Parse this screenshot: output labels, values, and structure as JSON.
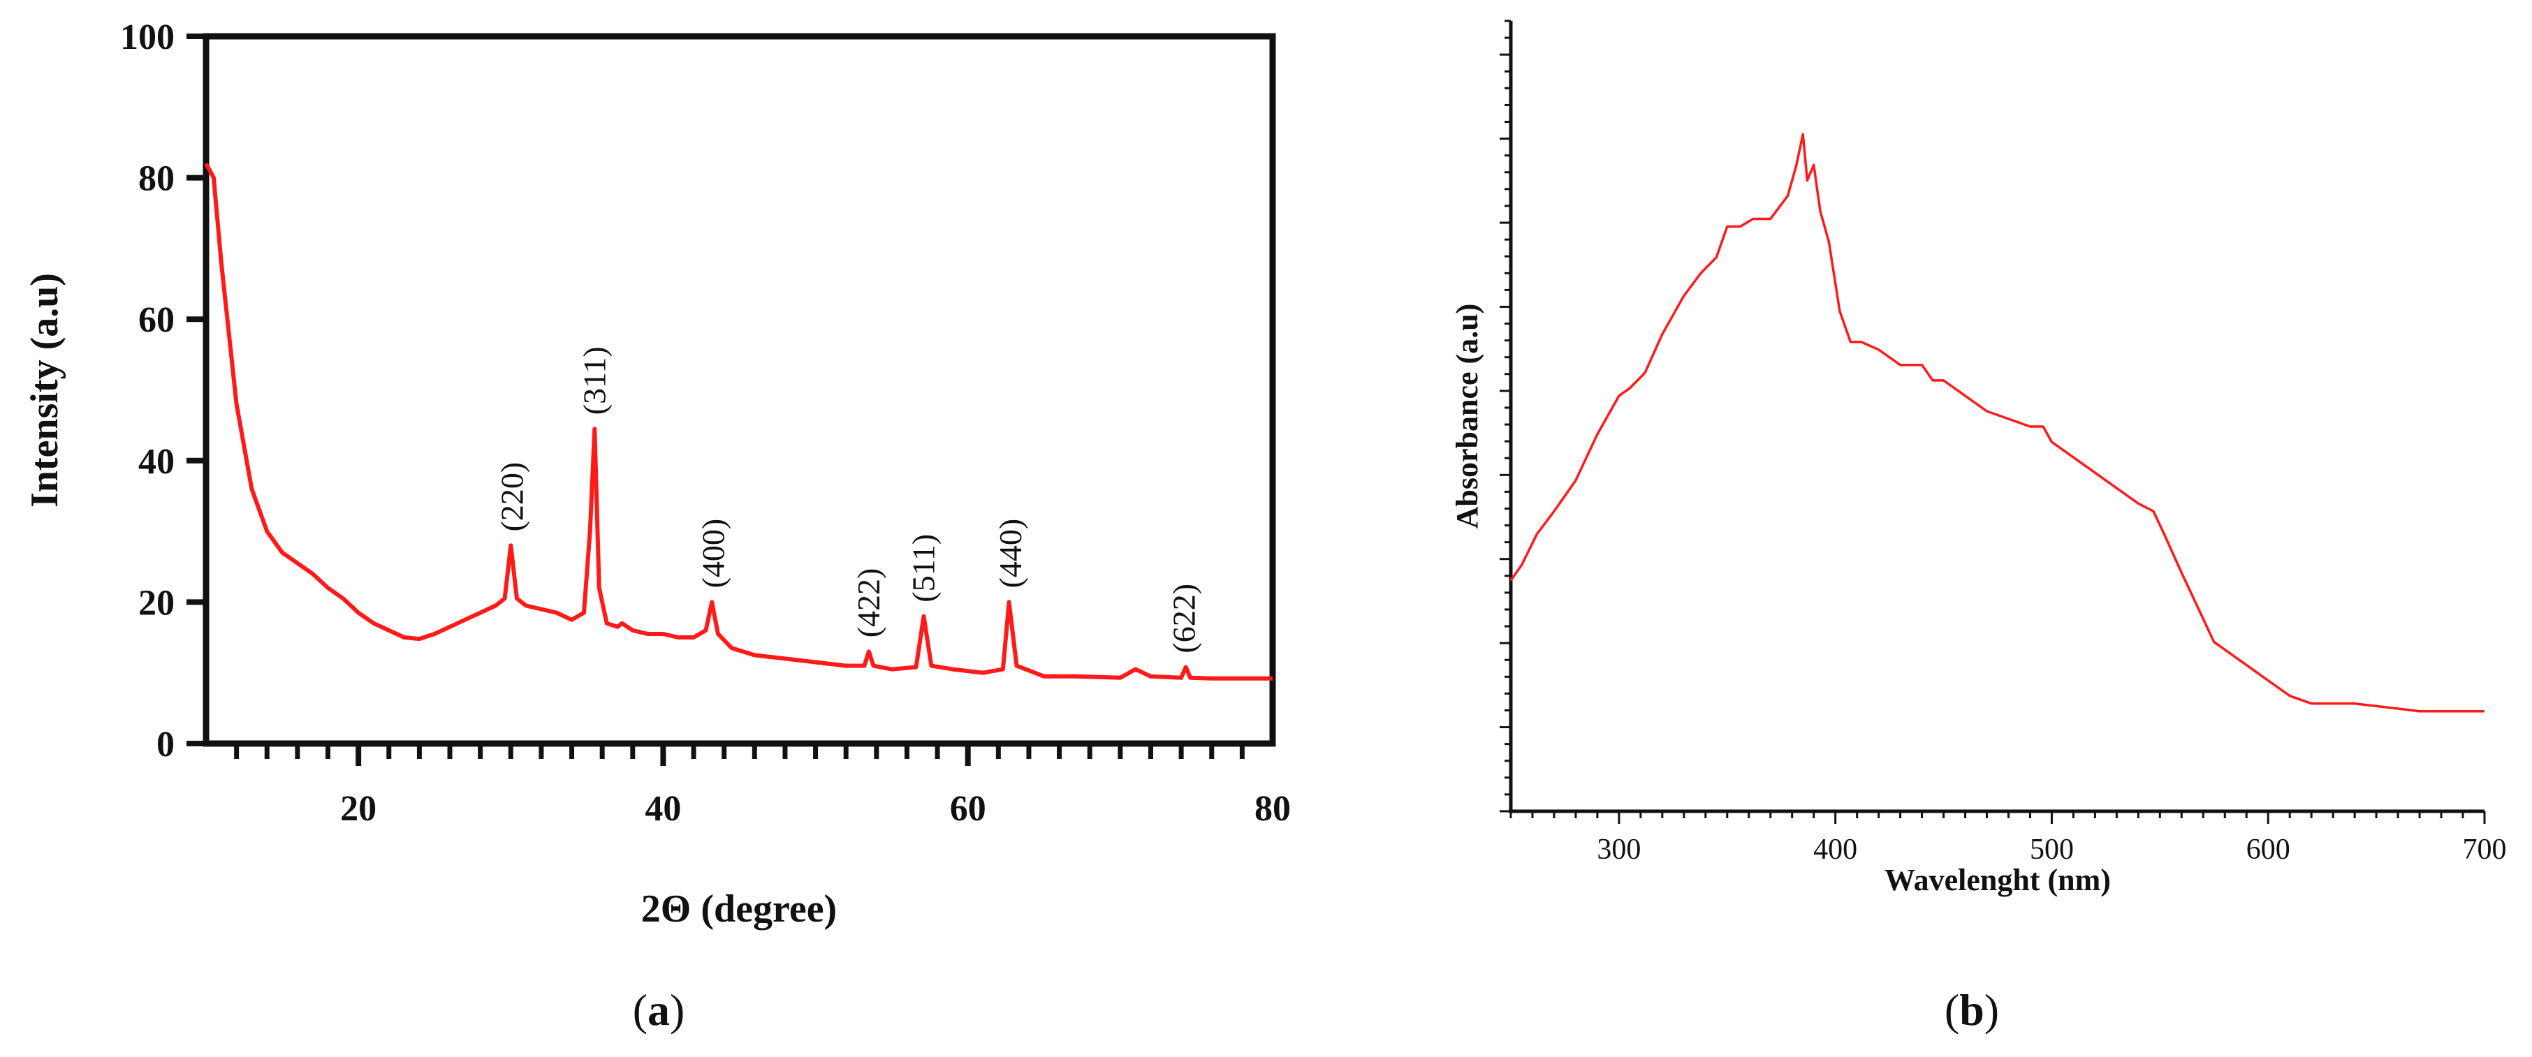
{
  "chart_data": [
    {
      "panel": "(a)",
      "type": "line",
      "xlabel": "2Θ (degree)",
      "ylabel": "Intensity (a.u)",
      "xlim": [
        10,
        80
      ],
      "ylim": [
        0,
        100
      ],
      "xticks": [
        20,
        40,
        60,
        80
      ],
      "yticks": [
        0,
        20,
        40,
        60,
        80,
        100
      ],
      "line_color": "#ff1a1a",
      "series": [
        {
          "x": [
            10,
            10.5,
            11,
            12,
            13,
            14,
            15,
            16,
            17,
            18,
            19,
            20,
            21,
            22,
            23,
            24,
            25,
            26,
            27,
            28,
            29,
            29.6,
            30,
            30.4,
            31,
            32,
            33,
            34,
            34.8,
            35.2,
            35.5,
            35.8,
            36.3,
            37,
            37.3,
            38,
            39,
            40,
            41,
            42,
            42.8,
            43.2,
            43.6,
            44.5,
            46,
            48,
            50,
            52,
            53.2,
            53.5,
            53.8,
            55,
            56.6,
            57.1,
            57.6,
            59,
            61,
            62.3,
            62.7,
            63.2,
            65,
            67,
            70,
            71,
            72,
            74,
            74.3,
            74.6,
            76,
            78,
            80
          ],
          "y": [
            82,
            80,
            68,
            48,
            36,
            30,
            27,
            25.5,
            24,
            22,
            20.5,
            18.5,
            17,
            16,
            15,
            14.8,
            15.5,
            16.5,
            17.5,
            18.5,
            19.5,
            20.5,
            28,
            20.5,
            19.5,
            19,
            18.5,
            17.5,
            18.5,
            30,
            44.5,
            22,
            17,
            16.5,
            17,
            16,
            15.5,
            15.5,
            15,
            15,
            16,
            20,
            15.5,
            13.5,
            12.5,
            12,
            11.5,
            11,
            11,
            13,
            11,
            10.5,
            10.8,
            18,
            11,
            10.5,
            10,
            10.5,
            20,
            11,
            9.5,
            9.5,
            9.3,
            10.5,
            9.5,
            9.3,
            10.8,
            9.3,
            9.2,
            9.2,
            9.2
          ]
        }
      ],
      "annotations": [
        {
          "text": "(220)",
          "x": 30.1,
          "y": 28
        },
        {
          "text": "(311)",
          "x": 35.5,
          "y": 44.5
        },
        {
          "text": "(400)",
          "x": 43.3,
          "y": 20
        },
        {
          "text": "(422)",
          "x": 53.5,
          "y": 13
        },
        {
          "text": "(511)",
          "x": 57.1,
          "y": 18
        },
        {
          "text": "(440)",
          "x": 62.8,
          "y": 20
        },
        {
          "text": "(622)",
          "x": 74.2,
          "y": 10.8
        }
      ]
    },
    {
      "panel": "(b)",
      "type": "line",
      "xlabel": "Wavelenght (nm)",
      "ylabel": "Absorbance (a.u)",
      "xlim": [
        250,
        700
      ],
      "ylim": [
        0,
        1
      ],
      "xticks": [
        300,
        400,
        500,
        600,
        700
      ],
      "yticks": [],
      "line_color": "#ff1a1a",
      "series": [
        {
          "x": [
            250,
            255,
            262,
            270,
            280,
            290,
            300,
            305,
            312,
            320,
            330,
            338,
            345,
            350,
            356,
            362,
            370,
            378,
            382,
            385,
            387,
            390,
            393,
            397,
            402,
            407,
            412,
            420,
            430,
            440,
            445,
            450,
            460,
            470,
            480,
            490,
            496,
            500,
            510,
            520,
            530,
            540,
            547,
            552,
            560,
            570,
            575,
            580,
            590,
            600,
            610,
            620,
            640,
            670,
            700
          ],
          "y": [
            0.3,
            0.32,
            0.36,
            0.39,
            0.43,
            0.49,
            0.54,
            0.55,
            0.57,
            0.62,
            0.67,
            0.7,
            0.72,
            0.76,
            0.76,
            0.77,
            0.77,
            0.8,
            0.84,
            0.88,
            0.82,
            0.84,
            0.78,
            0.74,
            0.65,
            0.61,
            0.61,
            0.6,
            0.58,
            0.58,
            0.56,
            0.56,
            0.54,
            0.52,
            0.51,
            0.5,
            0.5,
            0.48,
            0.46,
            0.44,
            0.42,
            0.4,
            0.39,
            0.36,
            0.31,
            0.25,
            0.22,
            0.21,
            0.19,
            0.17,
            0.15,
            0.14,
            0.14,
            0.13,
            0.13
          ]
        }
      ]
    }
  ]
}
